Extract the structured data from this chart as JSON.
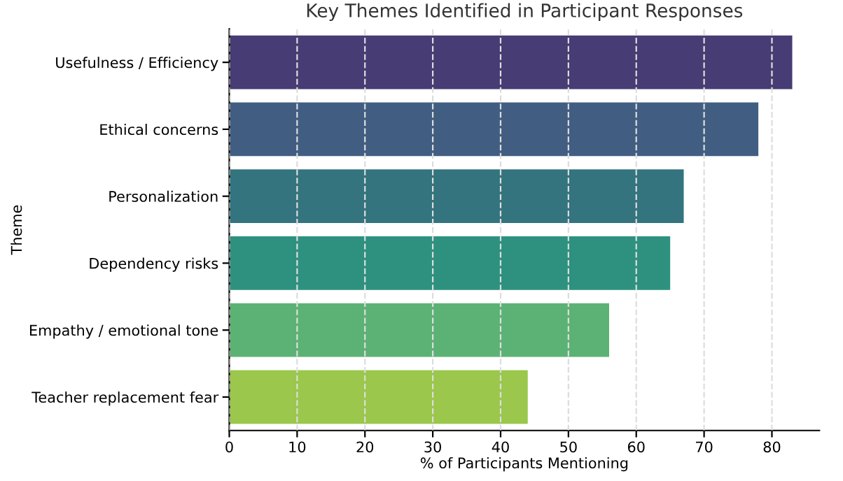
{
  "chart_data": {
    "type": "bar",
    "orientation": "horizontal",
    "title": "Key Themes Identified in Participant Responses",
    "xlabel": "% of Participants Mentioning",
    "ylabel": "Theme",
    "categories": [
      "Usefulness / Efficiency",
      "Ethical concerns",
      "Personalization",
      "Dependency risks",
      "Empathy / emotional tone",
      "Teacher replacement fear"
    ],
    "values": [
      83,
      78,
      67,
      65,
      56,
      44
    ],
    "colors": [
      "#483c74",
      "#415e82",
      "#33747e",
      "#2e917f",
      "#5cb274",
      "#9ac74c"
    ],
    "xlim": [
      0,
      87
    ],
    "xticks": [
      0,
      10,
      20,
      30,
      40,
      50,
      60,
      70,
      80
    ],
    "grid": "x"
  }
}
